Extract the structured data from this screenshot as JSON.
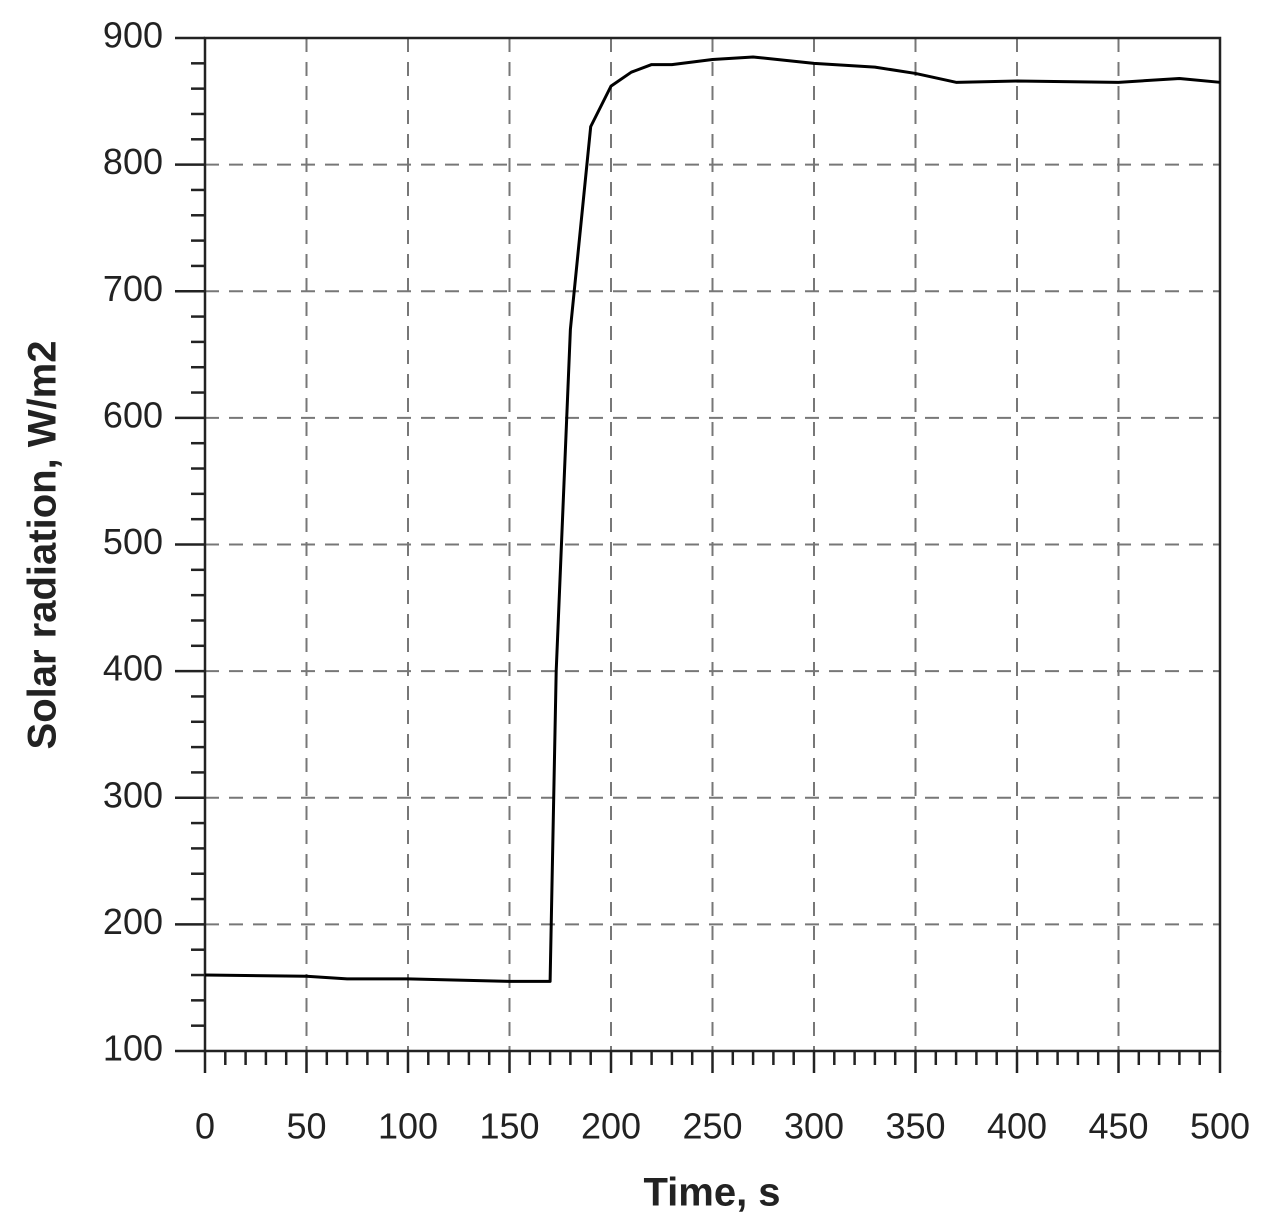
{
  "chart_data": {
    "type": "line",
    "xlabel": "Time, s",
    "ylabel": "Solar radiation, W/m2",
    "x": [
      0,
      50,
      70,
      100,
      150,
      170,
      173,
      180,
      190,
      200,
      210,
      220,
      230,
      250,
      270,
      300,
      330,
      350,
      370,
      400,
      450,
      480,
      500
    ],
    "series": [
      {
        "color": "#000000",
        "values": [
          160,
          159,
          157,
          157,
          155,
          155,
          400,
          670,
          830,
          862,
          873,
          879,
          879,
          883,
          885,
          880,
          877,
          872,
          865,
          866,
          865,
          868,
          865
        ]
      }
    ],
    "xlim": [
      0,
      500
    ],
    "xticks": [
      0,
      50,
      100,
      150,
      200,
      250,
      300,
      350,
      400,
      450,
      500
    ],
    "ylim": [
      100,
      900
    ],
    "yticks": [
      100,
      200,
      300,
      400,
      500,
      600,
      700,
      800,
      900
    ],
    "grid": true
  }
}
